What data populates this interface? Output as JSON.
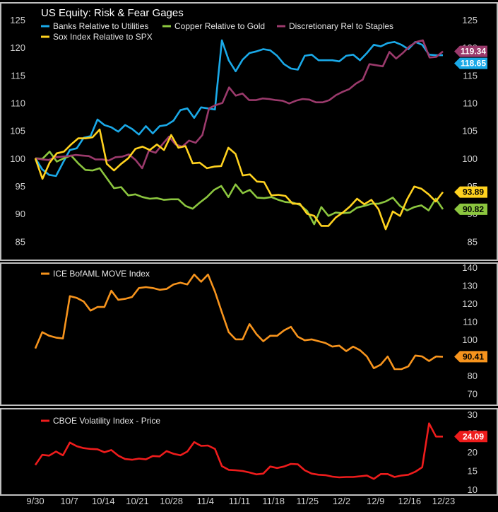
{
  "chart_data": [
    {
      "type": "line",
      "title": "US Equity: Risk & Fear Gages",
      "ylim": [
        83,
        125
      ],
      "y_ticks": [
        85,
        90,
        95,
        100,
        105,
        110,
        115,
        120,
        125
      ],
      "grid": false,
      "legend_position": "top-left",
      "series": [
        {
          "name": "Banks Relative to Utilities",
          "color": "#1aa9e8",
          "last_label": "118.65",
          "values": [
            100,
            98,
            97,
            96.8,
            99.2,
            101.5,
            101.8,
            103.7,
            104,
            107,
            106,
            105.6,
            104.8,
            106,
            105.3,
            104.3,
            105.8,
            104.5,
            105.8,
            106,
            106.8,
            108.7,
            109,
            107.3,
            109.2,
            109,
            108.8,
            121.3,
            117.7,
            115.7,
            117.8,
            119,
            119.3,
            119.7,
            119.5,
            118.5,
            117,
            116.2,
            116,
            118.5,
            118.7,
            117.7,
            117.7,
            117.7,
            117.5,
            118.5,
            118.7,
            117.7,
            119,
            120.5,
            120.2,
            120.8,
            121,
            120.5,
            119.7,
            121,
            120.5,
            118.7,
            118.6,
            118.6
          ]
        },
        {
          "name": "Copper Relative to Gold",
          "color": "#8cc63f",
          "last_label": "90.82",
          "values": [
            100,
            99.9,
            101.2,
            99.4,
            100,
            100.5,
            99.1,
            97.9,
            97.8,
            98.2,
            96.4,
            94.6,
            94.8,
            93.3,
            93.5,
            93,
            92.7,
            92.8,
            92.5,
            92.6,
            92.6,
            91.4,
            90.9,
            92,
            93,
            94.3,
            95,
            93,
            95.3,
            93.7,
            94.3,
            92.9,
            92.8,
            93,
            92.5,
            92.1,
            92,
            91.6,
            90.5,
            88.1,
            91.2,
            89.6,
            90.2,
            90.1,
            90.2,
            91.1,
            91.4,
            91.8,
            91.8,
            92.2,
            92.9,
            91.4,
            90.6,
            91.2,
            91.5,
            90.6,
            92.7,
            90.8
          ]
        },
        {
          "name": "Discretionary Rel to Staples",
          "color": "#9b3a6c",
          "last_label": "119.34",
          "values": [
            100,
            99.8,
            99.7,
            100.2,
            100.3,
            100.4,
            100.6,
            100.5,
            100.4,
            99.8,
            99.8,
            99.6,
            100.2,
            100.3,
            100.7,
            99.7,
            98.2,
            101.4,
            101,
            102.5,
            103.9,
            102.5,
            102.1,
            103.2,
            102.8,
            104.2,
            109,
            109.6,
            110,
            112.8,
            111.3,
            111.7,
            110.5,
            110.5,
            110.8,
            110.7,
            110.5,
            110.4,
            109.9,
            110.4,
            110.7,
            110.6,
            110.1,
            110.1,
            110.5,
            111.4,
            112,
            112.5,
            113.5,
            114.2,
            117,
            116.8,
            116.6,
            119.2,
            118,
            119,
            120.2,
            121,
            121.3,
            118.2,
            118.3,
            119.3
          ]
        },
        {
          "name": "Sox Index Relative to SPX",
          "color": "#ffd21f",
          "last_label": "93.89",
          "values": [
            100,
            96.3,
            99.2,
            100.9,
            101.2,
            102.5,
            103.6,
            103.6,
            103.8,
            105.2,
            99,
            97.8,
            99,
            100,
            101.7,
            102.1,
            101.5,
            102.5,
            101.5,
            104.2,
            101.9,
            102.2,
            99.1,
            99.2,
            98.2,
            98.5,
            98.6,
            101.9,
            100.8,
            96.9,
            97.1,
            95.8,
            95.7,
            93.3,
            93.4,
            93.2,
            91.8,
            91.8,
            90,
            89.6,
            87.8,
            87.8,
            89.3,
            90.2,
            91.3,
            92.7,
            91.7,
            92.5,
            90.8,
            87.2,
            90.4,
            89.6,
            92.6,
            94.9,
            94.5,
            93.5,
            92.2,
            93.9
          ]
        }
      ]
    },
    {
      "type": "line",
      "ylim": [
        67,
        140
      ],
      "y_ticks": [
        70,
        80,
        90,
        100,
        110,
        120,
        130,
        140
      ],
      "grid": false,
      "legend_position": "top-left",
      "series": [
        {
          "name": "ICE BofAML MOVE Index",
          "color": "#f7941d",
          "last_label": "90.41",
          "values": [
            95,
            104,
            102,
            101,
            100.5,
            124,
            123,
            121,
            116,
            118,
            118,
            127,
            122,
            122.5,
            123.5,
            128.5,
            129,
            128.5,
            127.5,
            128,
            130.5,
            131.5,
            130.5,
            136,
            132,
            136,
            126.5,
            115,
            104,
            100,
            100,
            108.5,
            103,
            99,
            102,
            102,
            105,
            107,
            101.5,
            99.5,
            100,
            99,
            98,
            96,
            96.5,
            93.5,
            96,
            94,
            90.5,
            84,
            86,
            90.5,
            83.5,
            83.5,
            85,
            91,
            90.5,
            88,
            90.5,
            90.4
          ]
        }
      ]
    },
    {
      "type": "line",
      "ylim": [
        10,
        30
      ],
      "y_ticks": [
        10,
        15,
        20,
        25,
        30
      ],
      "x_tick_labels": [
        "9/30",
        "10/7",
        "10/14",
        "10/21",
        "10/28",
        "11/4",
        "11/11",
        "11/18",
        "11/25",
        "12/2",
        "12/9",
        "12/16",
        "12/23"
      ],
      "grid": false,
      "legend_position": "top-left",
      "series": [
        {
          "name": "CBOE Volatility Index - Price",
          "color": "#ee1c1c",
          "last_label": "24.09",
          "values": [
            16.5,
            19.2,
            19,
            20.1,
            19.1,
            22.5,
            21.5,
            21,
            20.8,
            20.7,
            19.9,
            20.5,
            19,
            18.1,
            17.9,
            18.2,
            18,
            18.9,
            18.8,
            20.2,
            19.5,
            19.1,
            20.1,
            22.6,
            21.6,
            21.7,
            20.8,
            16.2,
            15.2,
            15.1,
            14.9,
            14.5,
            14,
            14.2,
            16.1,
            15.7,
            16.1,
            16.8,
            16.7,
            15.1,
            14.2,
            13.9,
            13.8,
            13.4,
            13.2,
            13.3,
            13.3,
            13.5,
            13.7,
            12.8,
            14.1,
            14.1,
            13.3,
            13.7,
            13.9,
            14.7,
            15.9,
            27.6,
            24.1,
            24.1
          ]
        }
      ]
    }
  ]
}
